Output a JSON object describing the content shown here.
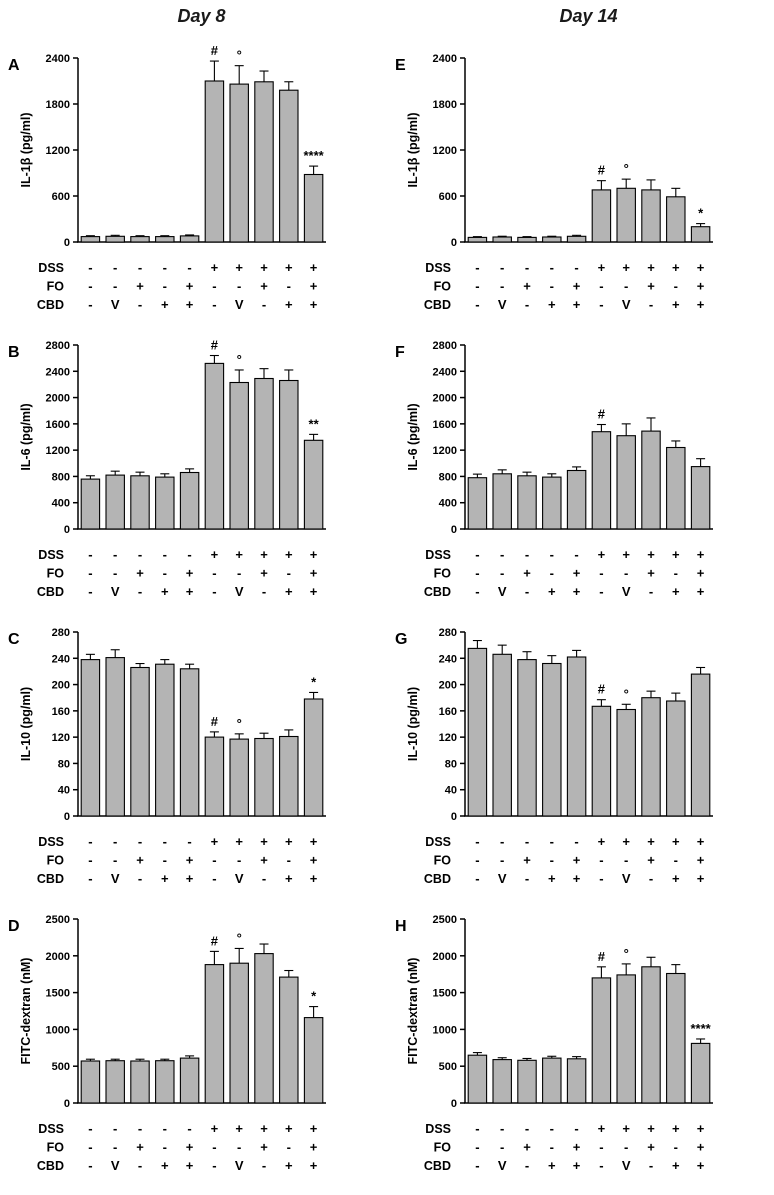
{
  "columns": [
    {
      "header": "Day 8",
      "panels": [
        "A",
        "B",
        "C",
        "D"
      ]
    },
    {
      "header": "Day 14",
      "panels": [
        "E",
        "F",
        "G",
        "H"
      ]
    }
  ],
  "treatments": {
    "rows": [
      {
        "label": "DSS",
        "values": [
          "-",
          "-",
          "-",
          "-",
          "-",
          "+",
          "+",
          "+",
          "+",
          "+"
        ]
      },
      {
        "label": "FO",
        "values": [
          "-",
          "-",
          "+",
          "-",
          "+",
          "-",
          "-",
          "+",
          "-",
          "+"
        ]
      },
      {
        "label": "CBD",
        "values": [
          "-",
          "V",
          "-",
          "+",
          "+",
          "-",
          "V",
          "-",
          "+",
          "+"
        ]
      }
    ]
  },
  "colors": {
    "bar_fill": "#b4b4b4",
    "bar_stroke": "#000000",
    "axis": "#000000"
  },
  "chart_data": [
    {
      "panel": "A",
      "column": "Day 8",
      "type": "bar",
      "ylabel": "IL-1β (pg/ml)",
      "ylim": [
        0,
        2400
      ],
      "yticks": [
        0,
        600,
        1200,
        1800,
        2400
      ],
      "x_labels_from": "treatments",
      "grid": false,
      "legend": false,
      "values": [
        70,
        75,
        70,
        70,
        80,
        2100,
        2060,
        2090,
        1980,
        880
      ],
      "errors": [
        12,
        12,
        12,
        12,
        12,
        260,
        240,
        140,
        110,
        110
      ],
      "annotations": [
        {
          "bar_index": 5,
          "text": "#"
        },
        {
          "bar_index": 6,
          "text": "°"
        },
        {
          "bar_index": 9,
          "text": "****"
        }
      ]
    },
    {
      "panel": "B",
      "column": "Day 8",
      "type": "bar",
      "ylabel": "IL-6 (pg/ml)",
      "ylim": [
        0,
        2800
      ],
      "yticks": [
        0,
        400,
        800,
        1200,
        1600,
        2000,
        2400,
        2800
      ],
      "x_labels_from": "treatments",
      "grid": false,
      "legend": false,
      "values": [
        760,
        820,
        810,
        790,
        860,
        2520,
        2230,
        2290,
        2260,
        1350
      ],
      "errors": [
        50,
        60,
        55,
        50,
        55,
        120,
        190,
        150,
        160,
        90
      ],
      "annotations": [
        {
          "bar_index": 5,
          "text": "#"
        },
        {
          "bar_index": 6,
          "text": "°"
        },
        {
          "bar_index": 9,
          "text": "**"
        }
      ]
    },
    {
      "panel": "C",
      "column": "Day 8",
      "type": "bar",
      "ylabel": "IL-10 (pg/ml)",
      "ylim": [
        0,
        280
      ],
      "yticks": [
        0,
        40,
        80,
        120,
        160,
        200,
        240,
        280
      ],
      "x_labels_from": "treatments",
      "grid": false,
      "legend": false,
      "values": [
        238,
        241,
        226,
        231,
        224,
        120,
        117,
        118,
        121,
        178
      ],
      "errors": [
        8,
        12,
        6,
        7,
        7,
        8,
        8,
        8,
        10,
        10
      ],
      "annotations": [
        {
          "bar_index": 5,
          "text": "#"
        },
        {
          "bar_index": 6,
          "text": "°"
        },
        {
          "bar_index": 9,
          "text": "*"
        }
      ]
    },
    {
      "panel": "D",
      "column": "Day 8",
      "type": "bar",
      "ylabel": "FITC-dextran (nM)",
      "ylim": [
        0,
        2500
      ],
      "yticks": [
        0,
        500,
        1000,
        1500,
        2000,
        2500
      ],
      "x_labels_from": "treatments",
      "grid": false,
      "legend": false,
      "values": [
        570,
        575,
        570,
        575,
        610,
        1880,
        1900,
        2030,
        1710,
        1160
      ],
      "errors": [
        25,
        20,
        25,
        20,
        30,
        180,
        200,
        130,
        90,
        150
      ],
      "annotations": [
        {
          "bar_index": 5,
          "text": "#"
        },
        {
          "bar_index": 6,
          "text": "°"
        },
        {
          "bar_index": 9,
          "text": "*"
        }
      ]
    },
    {
      "panel": "E",
      "column": "Day 14",
      "type": "bar",
      "ylabel": "IL-1β (pg/ml)",
      "ylim": [
        0,
        2400
      ],
      "yticks": [
        0,
        600,
        1200,
        1800,
        2400
      ],
      "x_labels_from": "treatments",
      "grid": false,
      "legend": false,
      "values": [
        60,
        65,
        60,
        65,
        75,
        680,
        700,
        680,
        590,
        200
      ],
      "errors": [
        10,
        10,
        10,
        10,
        12,
        120,
        120,
        130,
        110,
        40
      ],
      "annotations": [
        {
          "bar_index": 5,
          "text": "#"
        },
        {
          "bar_index": 6,
          "text": "°"
        },
        {
          "bar_index": 9,
          "text": "*"
        }
      ]
    },
    {
      "panel": "F",
      "column": "Day 14",
      "type": "bar",
      "ylabel": "IL-6 (pg/ml)",
      "ylim": [
        0,
        2800
      ],
      "yticks": [
        0,
        400,
        800,
        1200,
        1600,
        2000,
        2400,
        2800
      ],
      "x_labels_from": "treatments",
      "grid": false,
      "legend": false,
      "values": [
        780,
        840,
        810,
        790,
        890,
        1480,
        1420,
        1490,
        1240,
        950
      ],
      "errors": [
        55,
        60,
        55,
        50,
        55,
        110,
        180,
        200,
        100,
        120
      ],
      "annotations": [
        {
          "bar_index": 5,
          "text": "#"
        }
      ]
    },
    {
      "panel": "G",
      "column": "Day 14",
      "type": "bar",
      "ylabel": "IL-10 (pg/ml)",
      "ylim": [
        0,
        280
      ],
      "yticks": [
        0,
        40,
        80,
        120,
        160,
        200,
        240,
        280
      ],
      "x_labels_from": "treatments",
      "grid": false,
      "legend": false,
      "values": [
        255,
        246,
        238,
        232,
        242,
        167,
        162,
        180,
        175,
        216
      ],
      "errors": [
        12,
        14,
        12,
        12,
        10,
        10,
        8,
        10,
        12,
        10
      ],
      "annotations": [
        {
          "bar_index": 5,
          "text": "#"
        },
        {
          "bar_index": 6,
          "text": "°"
        }
      ]
    },
    {
      "panel": "H",
      "column": "Day 14",
      "type": "bar",
      "ylabel": "FITC-dextran (nM)",
      "ylim": [
        0,
        2500
      ],
      "yticks": [
        0,
        500,
        1000,
        1500,
        2000,
        2500
      ],
      "x_labels_from": "treatments",
      "grid": false,
      "legend": false,
      "values": [
        650,
        590,
        580,
        610,
        600,
        1700,
        1740,
        1850,
        1760,
        810
      ],
      "errors": [
        35,
        25,
        25,
        25,
        30,
        150,
        150,
        130,
        120,
        60
      ],
      "annotations": [
        {
          "bar_index": 5,
          "text": "#"
        },
        {
          "bar_index": 6,
          "text": "°"
        },
        {
          "bar_index": 9,
          "text": "****"
        }
      ]
    }
  ]
}
